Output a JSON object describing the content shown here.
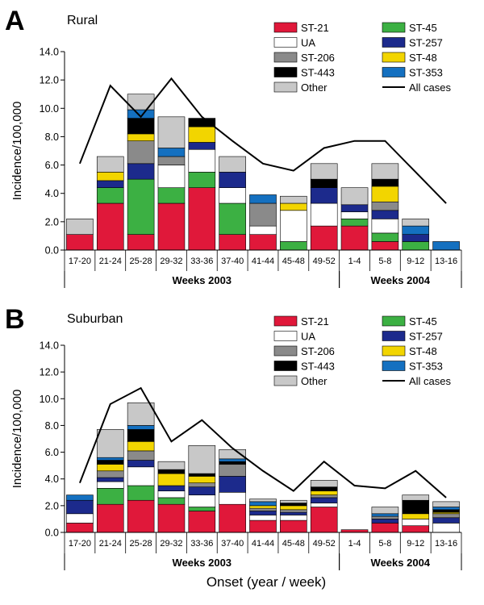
{
  "chart_data": [
    {
      "type": "bar",
      "panel": "A",
      "title": "Rural",
      "ylabel": "Incidence/100,000",
      "ylim": [
        0,
        14
      ],
      "yticks": [
        "0.0",
        "2.0",
        "4.0",
        "6.0",
        "8.0",
        "10.0",
        "12.0",
        "14.0"
      ],
      "categories": [
        "17-20",
        "21-24",
        "25-28",
        "29-32",
        "33-36",
        "37-40",
        "41-44",
        "45-48",
        "49-52",
        "1-4",
        "5-8",
        "9-12",
        "13-16"
      ],
      "groups": [
        {
          "label": "Weeks 2003",
          "count": 9
        },
        {
          "label": "Weeks 2004",
          "count": 4
        }
      ],
      "series": [
        {
          "name": "ST-21",
          "color": "#e0183a",
          "values": [
            1.1,
            3.3,
            1.1,
            3.3,
            4.4,
            1.1,
            1.1,
            0,
            1.7,
            1.7,
            0.6,
            0,
            0
          ]
        },
        {
          "name": "ST-45",
          "color": "#3cb043",
          "values": [
            0,
            1.1,
            3.9,
            1.1,
            1.1,
            2.2,
            0,
            0.6,
            0,
            0.5,
            0.6,
            0.6,
            0
          ]
        },
        {
          "name": "UA",
          "color": "#ffffff",
          "values": [
            0,
            0,
            0,
            1.6,
            1.6,
            1.1,
            0.6,
            2.2,
            1.6,
            0.5,
            1.0,
            0,
            0
          ]
        },
        {
          "name": "ST-257",
          "color": "#1c2a8c",
          "values": [
            0,
            0.5,
            1.1,
            0,
            0.5,
            1.1,
            0,
            0,
            1.1,
            0.5,
            0.6,
            0.5,
            0
          ]
        },
        {
          "name": "ST-206",
          "color": "#8a8a8a",
          "values": [
            0,
            0,
            1.6,
            0.6,
            0,
            0,
            1.6,
            0,
            0,
            0,
            0.6,
            0,
            0
          ]
        },
        {
          "name": "ST-48",
          "color": "#f2d500",
          "values": [
            0,
            0.6,
            0.5,
            0,
            1.1,
            0,
            0,
            0.5,
            0,
            0,
            1.1,
            0,
            0
          ]
        },
        {
          "name": "ST-443",
          "color": "#000000",
          "values": [
            0,
            0,
            1.1,
            0,
            0.6,
            0,
            0,
            0,
            0.6,
            0,
            0.5,
            0,
            0
          ]
        },
        {
          "name": "ST-353",
          "color": "#1470c0",
          "values": [
            0,
            0,
            0.6,
            0.6,
            0,
            0,
            0.6,
            0,
            0,
            0,
            0,
            0.6,
            0.6
          ]
        },
        {
          "name": "Other",
          "color": "#c8c8c8",
          "values": [
            1.1,
            1.1,
            1.1,
            2.2,
            0,
            1.1,
            0,
            0.5,
            1.1,
            1.2,
            1.1,
            0.5,
            0
          ]
        }
      ],
      "line": {
        "name": "All cases",
        "color": "#000000",
        "values": [
          6.1,
          11.6,
          9.4,
          12.1,
          9.4,
          7.7,
          6.1,
          5.6,
          7.2,
          7.7,
          7.7,
          5.5,
          3.3
        ]
      },
      "legend": {
        "position": "top-right",
        "columns": 2
      }
    },
    {
      "type": "bar",
      "panel": "B",
      "title": "Suburban",
      "ylabel": "Incidence/100,000",
      "ylim": [
        0,
        14
      ],
      "yticks": [
        "0.0",
        "2.0",
        "4.0",
        "6.0",
        "8.0",
        "10.0",
        "12.0",
        "14.0"
      ],
      "categories": [
        "17-20",
        "21-24",
        "25-28",
        "29-32",
        "33-36",
        "37-40",
        "41-44",
        "45-48",
        "49-52",
        "1-4",
        "5-8",
        "9-12",
        "13-16"
      ],
      "groups": [
        {
          "label": "Weeks 2003",
          "count": 9
        },
        {
          "label": "Weeks 2004",
          "count": 4
        }
      ],
      "series": [
        {
          "name": "ST-21",
          "color": "#e0183a",
          "values": [
            0.7,
            2.1,
            2.4,
            2.1,
            1.6,
            2.1,
            0.9,
            0.9,
            1.9,
            0.2,
            0.7,
            0.5,
            0
          ]
        },
        {
          "name": "ST-45",
          "color": "#3cb043",
          "values": [
            0,
            1.2,
            1.1,
            0.5,
            0.3,
            0,
            0,
            0,
            0,
            0,
            0,
            0,
            0
          ]
        },
        {
          "name": "UA",
          "color": "#ffffff",
          "values": [
            0.7,
            0.5,
            1.4,
            0.5,
            0.9,
            0.9,
            0.4,
            0.4,
            0.3,
            0,
            0,
            0.5,
            0.7
          ]
        },
        {
          "name": "ST-257",
          "color": "#1c2a8c",
          "values": [
            1.0,
            0.3,
            0.5,
            0.4,
            0.6,
            1.2,
            0.3,
            0.2,
            0.4,
            0,
            0.3,
            0,
            0.4
          ]
        },
        {
          "name": "ST-206",
          "color": "#8a8a8a",
          "values": [
            0,
            0.5,
            0.7,
            0,
            0.3,
            0.9,
            0.2,
            0.2,
            0.2,
            0,
            0.2,
            0,
            0.3
          ]
        },
        {
          "name": "ST-48",
          "color": "#f2d500",
          "values": [
            0,
            0.5,
            0.7,
            0.9,
            0.5,
            0,
            0.2,
            0.3,
            0.3,
            0,
            0,
            0.4,
            0.1
          ]
        },
        {
          "name": "ST-443",
          "color": "#000000",
          "values": [
            0,
            0.3,
            0.9,
            0.3,
            0.2,
            0.2,
            0,
            0.2,
            0.3,
            0,
            0,
            1.0,
            0.2
          ]
        },
        {
          "name": "ST-353",
          "color": "#1470c0",
          "values": [
            0.4,
            0.2,
            0.3,
            0,
            0,
            0.2,
            0.3,
            0,
            0,
            0,
            0.2,
            0,
            0.2
          ]
        },
        {
          "name": "Other",
          "color": "#c8c8c8",
          "values": [
            0,
            2.1,
            1.7,
            0.6,
            2.1,
            0.7,
            0.2,
            0.2,
            0.5,
            0,
            0.5,
            0.4,
            0.4
          ]
        }
      ],
      "line": {
        "name": "All cases",
        "color": "#000000",
        "values": [
          3.7,
          9.6,
          10.8,
          6.8,
          8.4,
          6.3,
          4.6,
          3.1,
          5.3,
          3.5,
          3.3,
          4.6,
          2.6
        ]
      },
      "legend": {
        "position": "top-right",
        "columns": 2
      }
    }
  ],
  "xlabel": "Onset (year / week)",
  "legend_order": [
    "ST-21",
    "ST-45",
    "UA",
    "ST-257",
    "ST-206",
    "ST-48",
    "ST-443",
    "ST-353",
    "Other",
    "All cases"
  ]
}
